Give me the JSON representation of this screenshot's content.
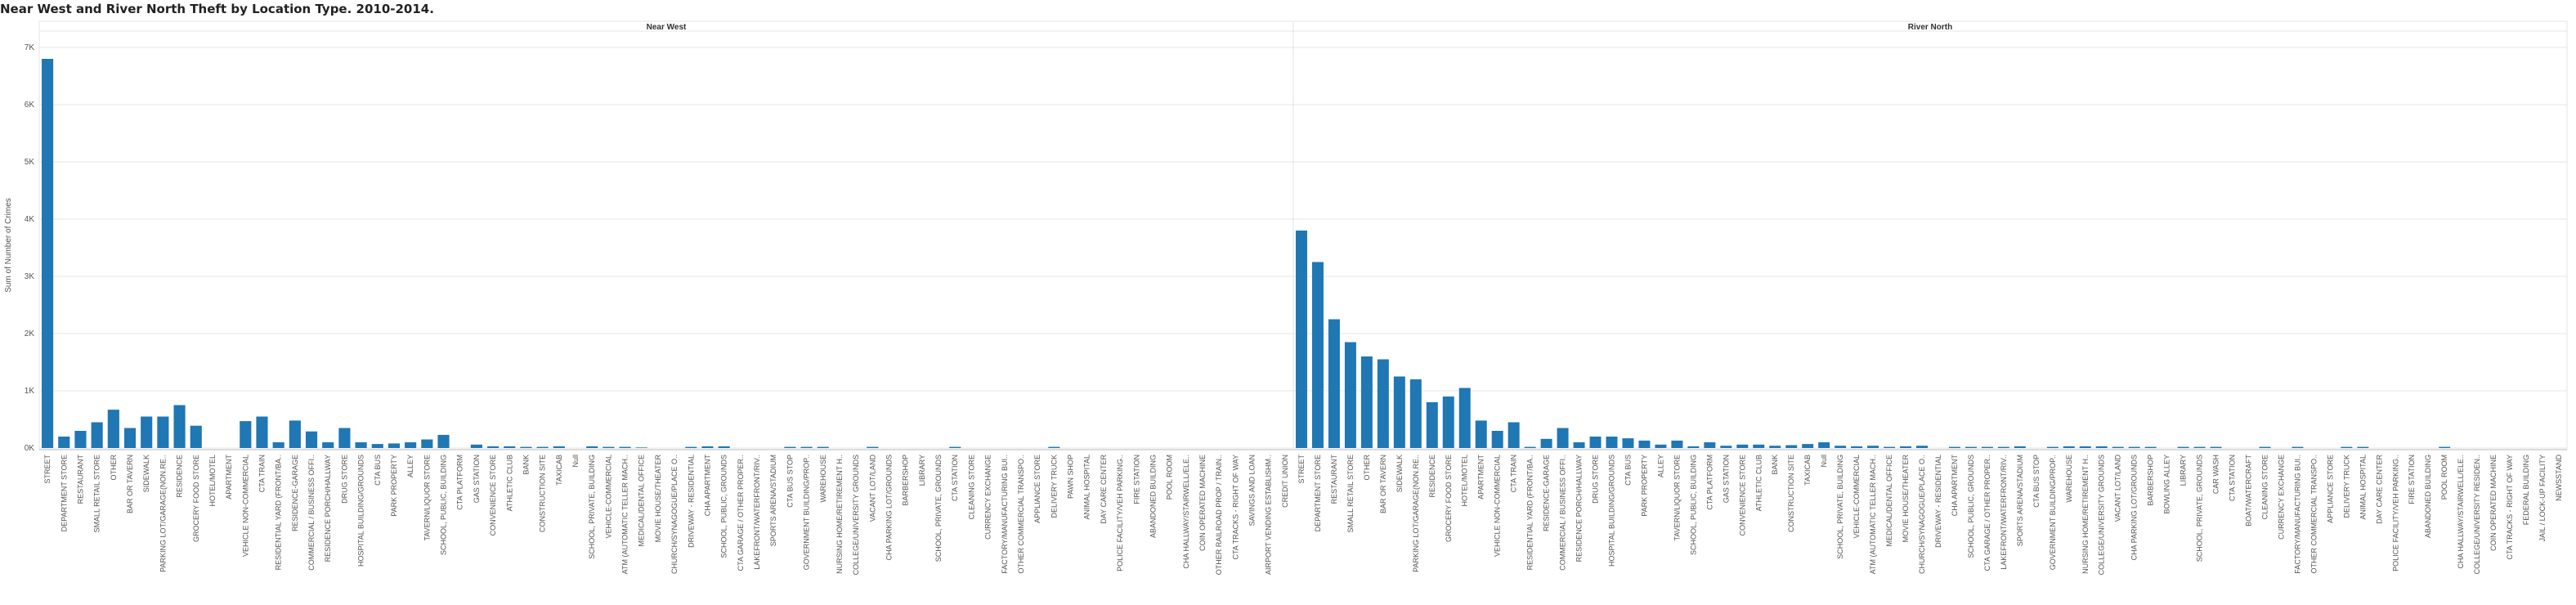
{
  "title": "Near West and River North Theft by Location Type. 2010-2014.",
  "colors": {
    "bar": "#1f77b4",
    "grid": "#e6e6e6",
    "axis": "#bbbbbb",
    "text": "#555555"
  },
  "chart_data": {
    "type": "bar",
    "title": "Near West and River North Theft by Location Type. 2010-2014.",
    "ylabel": "Sum of Number of Crimes",
    "ylim": [
      0,
      7000
    ],
    "yticks": [
      0,
      1000,
      2000,
      3000,
      4000,
      5000,
      6000,
      7000
    ],
    "ytick_labels": [
      "0K",
      "1K",
      "2K",
      "3K",
      "4K",
      "5K",
      "6K",
      "7K"
    ],
    "grid": true,
    "panels": [
      {
        "name": "Near West",
        "categories": [
          "STREET",
          "DEPARTMENT STORE",
          "RESTAURANT",
          "SMALL RETAIL STORE",
          "OTHER",
          "BAR OR TAVERN",
          "SIDEWALK",
          "PARKING LOT/GARAGE(NON.RE..",
          "RESIDENCE",
          "GROCERY FOOD STORE",
          "HOTEL/MOTEL",
          "APARTMENT",
          "VEHICLE NON-COMMERCIAL",
          "CTA TRAIN",
          "RESIDENTIAL YARD (FRONT/BA..",
          "RESIDENCE-GARAGE",
          "COMMERCIAL / BUSINESS OFFI..",
          "RESIDENCE PORCH/HALLWAY",
          "DRUG STORE",
          "HOSPITAL BUILDING/GROUNDS",
          "CTA BUS",
          "PARK PROPERTY",
          "ALLEY",
          "TAVERN/LIQUOR STORE",
          "SCHOOL, PUBLIC, BUILDING",
          "CTA PLATFORM",
          "GAS STATION",
          "CONVENIENCE STORE",
          "ATHLETIC CLUB",
          "BANK",
          "CONSTRUCTION SITE",
          "TAXICAB",
          "Null",
          "SCHOOL, PRIVATE, BUILDING",
          "VEHICLE-COMMERCIAL",
          "ATM (AUTOMATIC TELLER MACH..",
          "MEDICAL/DENTAL OFFICE",
          "MOVIE HOUSE/THEATER",
          "CHURCH/SYNAGOGUE/PLACE O..",
          "DRIVEWAY - RESIDENTIAL",
          "CHA APARTMENT",
          "SCHOOL, PUBLIC, GROUNDS",
          "CTA GARAGE / OTHER PROPER..",
          "LAKEFRONT/WATERFRONT/RIV..",
          "SPORTS ARENA/STADIUM",
          "CTA BUS STOP",
          "GOVERNMENT BUILDING/PROP..",
          "WAREHOUSE",
          "NURSING HOME/RETIREMENT H..",
          "COLLEGE/UNIVERSITY GROUNDS",
          "VACANT LOT/LAND",
          "CHA PARKING LOT/GROUNDS",
          "BARBERSHOP",
          "LIBRARY",
          "SCHOOL, PRIVATE, GROUNDS",
          "CTA STATION",
          "CLEANING STORE",
          "CURRENCY EXCHANGE",
          "FACTORY/MANUFACTURING BUI..",
          "OTHER COMMERCIAL TRANSPO..",
          "APPLIANCE STORE",
          "DELIVERY TRUCK",
          "PAWN SHOP",
          "ANIMAL HOSPITAL",
          "DAY CARE CENTER",
          "POLICE FACILITY/VEH PARKING..",
          "FIRE STATION",
          "ABANDONED BUILDING",
          "POOL ROOM",
          "CHA HALLWAY/STAIRWELL/ELE..",
          "COIN OPERATED MACHINE",
          "OTHER RAILROAD PROP / TRAIN..",
          "CTA TRACKS - RIGHT OF WAY",
          "SAVINGS AND LOAN",
          "AIRPORT VENDING ESTABLISHM..",
          "CREDIT UNION"
        ],
        "values": [
          6800,
          200,
          300,
          450,
          670,
          350,
          550,
          550,
          750,
          390,
          0,
          0,
          470,
          550,
          100,
          480,
          290,
          100,
          350,
          100,
          70,
          80,
          100,
          150,
          230,
          0,
          60,
          30,
          30,
          20,
          20,
          30,
          0,
          30,
          20,
          20,
          10,
          0,
          0,
          20,
          30,
          30,
          0,
          0,
          0,
          20,
          20,
          20,
          0,
          0,
          20,
          0,
          0,
          0,
          0,
          20,
          0,
          0,
          0,
          0,
          0,
          20,
          0,
          0,
          0,
          0,
          0,
          0,
          0,
          0,
          0,
          0,
          0,
          0,
          0,
          0
        ]
      },
      {
        "name": "River North",
        "categories": [
          "STREET",
          "DEPARTMENT STORE",
          "RESTAURANT",
          "SMALL RETAIL STORE",
          "OTHER",
          "BAR OR TAVERN",
          "SIDEWALK",
          "PARKING LOT/GARAGE(NON.RE..",
          "RESIDENCE",
          "GROCERY FOOD STORE",
          "HOTEL/MOTEL",
          "APARTMENT",
          "VEHICLE NON-COMMERCIAL",
          "CTA TRAIN",
          "RESIDENTIAL YARD (FRONT/BA..",
          "RESIDENCE-GARAGE",
          "COMMERCIAL / BUSINESS OFFI..",
          "RESIDENCE PORCH/HALLWAY",
          "DRUG STORE",
          "HOSPITAL BUILDING/GROUNDS",
          "CTA BUS",
          "PARK PROPERTY",
          "ALLEY",
          "TAVERN/LIQUOR STORE",
          "SCHOOL, PUBLIC, BUILDING",
          "CTA PLATFORM",
          "GAS STATION",
          "CONVENIENCE STORE",
          "ATHLETIC CLUB",
          "BANK",
          "CONSTRUCTION SITE",
          "TAXICAB",
          "Null",
          "SCHOOL, PRIVATE, BUILDING",
          "VEHICLE-COMMERCIAL",
          "ATM (AUTOMATIC TELLER MACH..",
          "MEDICAL/DENTAL OFFICE",
          "MOVIE HOUSE/THEATER",
          "CHURCH/SYNAGOGUE/PLACE O..",
          "DRIVEWAY - RESIDENTIAL",
          "CHA APARTMENT",
          "SCHOOL, PUBLIC, GROUNDS",
          "CTA GARAGE / OTHER PROPER..",
          "LAKEFRONT/WATERFRONT/RIV..",
          "SPORTS ARENA/STADIUM",
          "CTA BUS STOP",
          "GOVERNMENT BUILDING/PROP..",
          "WAREHOUSE",
          "NURSING HOME/RETIREMENT H..",
          "COLLEGE/UNIVERSITY GROUNDS",
          "VACANT LOT/LAND",
          "CHA PARKING LOT/GROUNDS",
          "BARBERSHOP",
          "BOWLING ALLEY",
          "LIBRARY",
          "SCHOOL, PRIVATE, GROUNDS",
          "CAR WASH",
          "CTA STATION",
          "BOAT/WATERCRAFT",
          "CLEANING STORE",
          "CURRENCY EXCHANGE",
          "FACTORY/MANUFACTURING BUI..",
          "OTHER COMMERCIAL TRANSPO..",
          "APPLIANCE STORE",
          "DELIVERY TRUCK",
          "ANIMAL HOSPITAL",
          "DAY CARE CENTER",
          "POLICE FACILITY/VEH PARKING..",
          "FIRE STATION",
          "ABANDONED BUILDING",
          "POOL ROOM",
          "CHA HALLWAY/STAIRWELL/ELE..",
          "COLLEGE/UNIVERSITY RESIDEN..",
          "COIN OPERATED MACHINE",
          "CTA TRACKS - RIGHT OF WAY",
          "FEDERAL BUILDING",
          "JAIL / LOCK-UP FACILITY",
          "NEWSSTAND"
        ],
        "values": [
          3800,
          3250,
          2250,
          1850,
          1600,
          1550,
          1250,
          1200,
          800,
          900,
          1050,
          480,
          300,
          450,
          20,
          160,
          350,
          100,
          200,
          200,
          170,
          130,
          60,
          130,
          30,
          100,
          40,
          60,
          60,
          40,
          50,
          70,
          100,
          40,
          30,
          40,
          20,
          30,
          40,
          0,
          20,
          20,
          20,
          20,
          30,
          0,
          20,
          30,
          30,
          30,
          20,
          20,
          20,
          0,
          20,
          20,
          20,
          0,
          0,
          20,
          0,
          20,
          0,
          0,
          20,
          20,
          0,
          0,
          0,
          0,
          20,
          0,
          0,
          0,
          0,
          0,
          0,
          0
        ]
      }
    ]
  }
}
